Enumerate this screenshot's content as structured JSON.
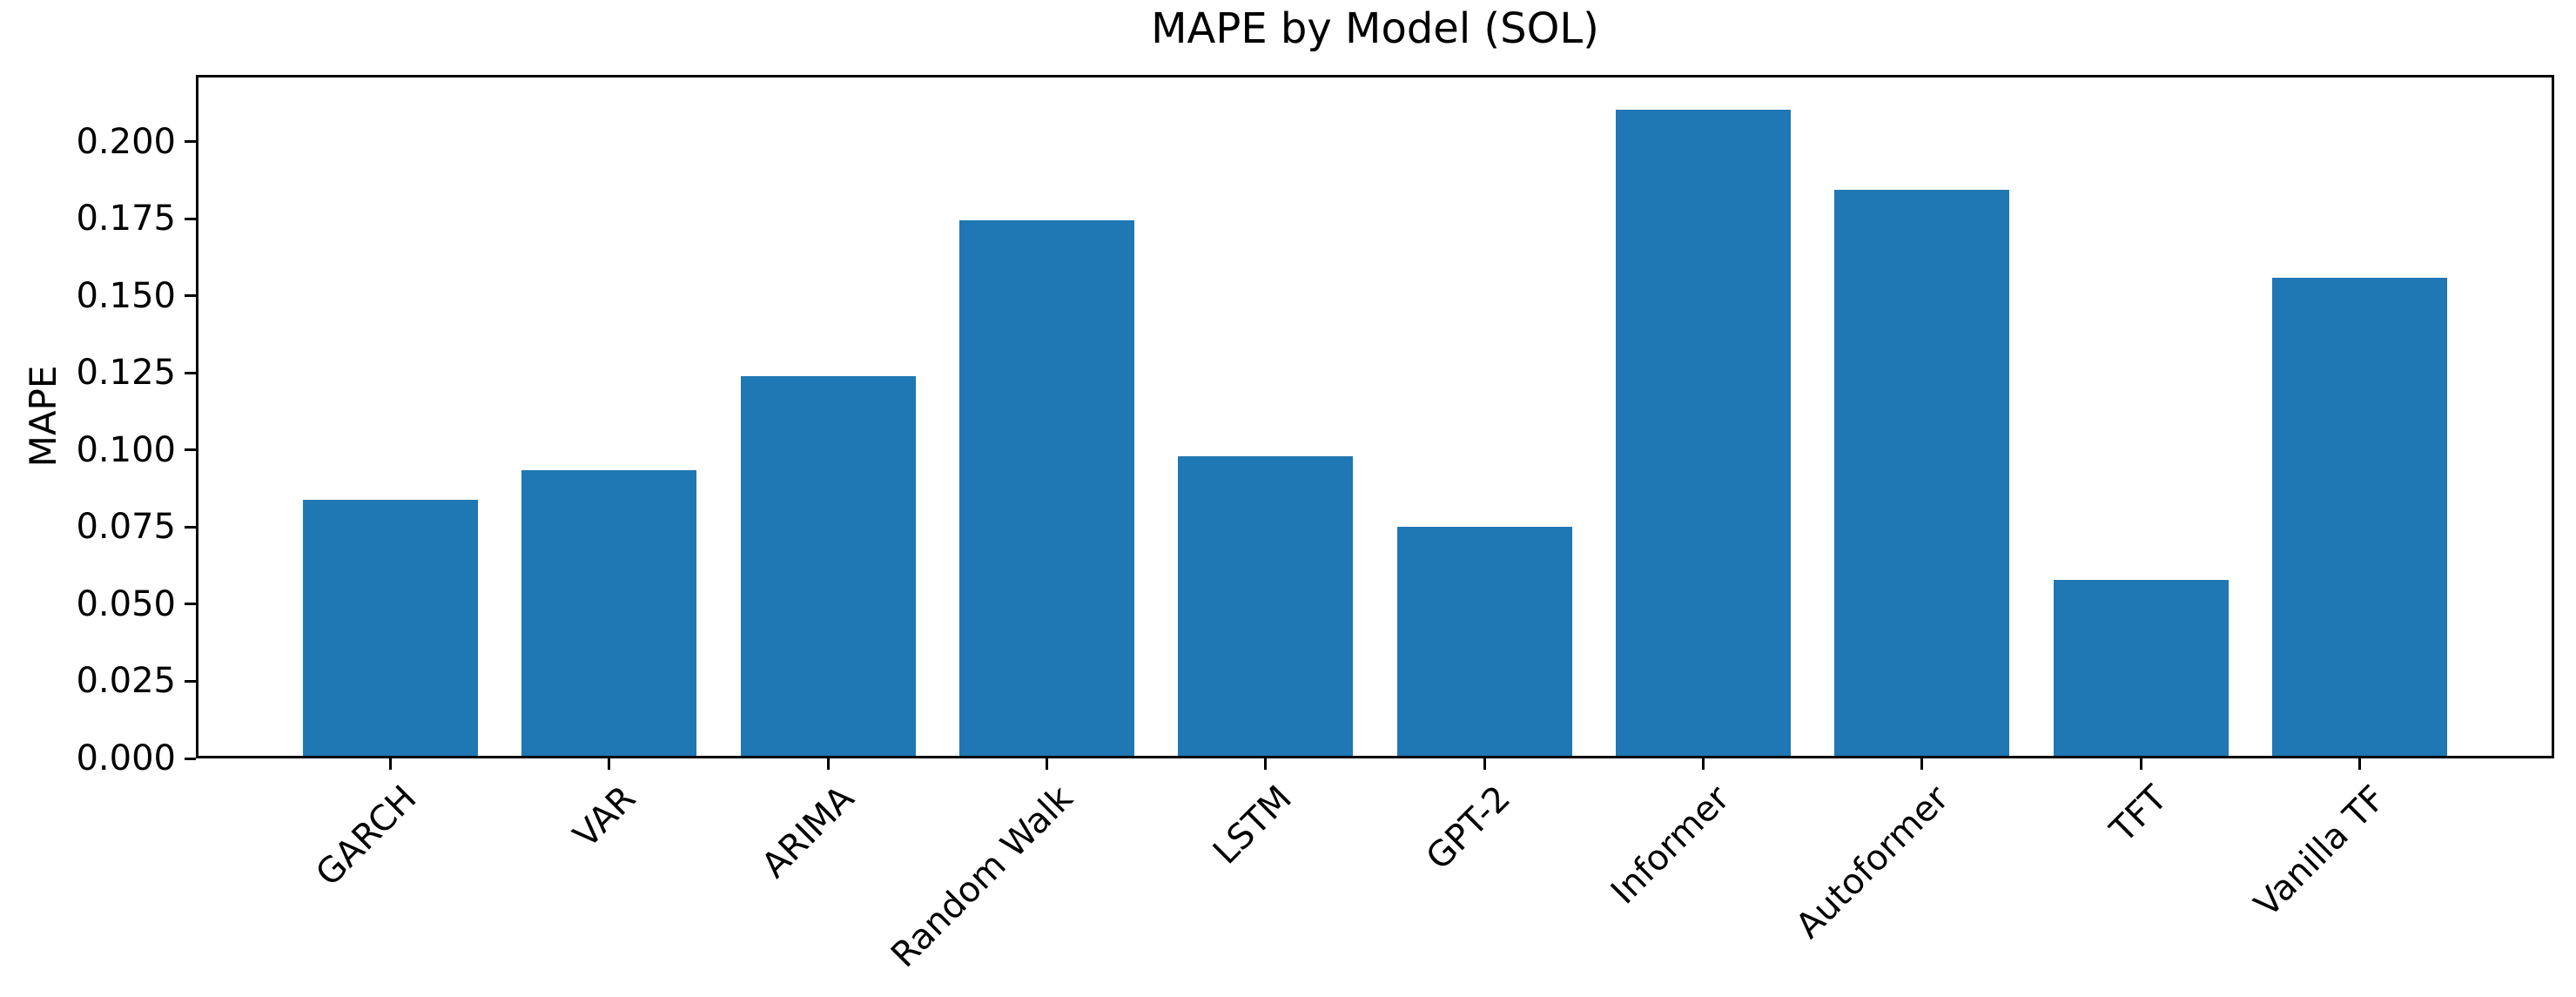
{
  "figure": {
    "background": "#ffffff",
    "text_color": "#000000",
    "axis_color": "#000000"
  },
  "chart_data": {
    "type": "bar",
    "title": "MAPE by Model (SOL)",
    "xlabel": "",
    "ylabel": "MAPE",
    "categories": [
      "GARCH",
      "VAR",
      "ARIMA",
      "Random Walk",
      "LSTM",
      "GPT-2",
      "Informer",
      "Autoformer",
      "TFT",
      "Vanilla TF"
    ],
    "values": [
      0.084,
      0.0935,
      0.124,
      0.1745,
      0.098,
      0.075,
      0.2105,
      0.1845,
      0.058,
      0.156
    ],
    "bar_color": "#1f77b4",
    "ylim": [
      0,
      0.2217
    ],
    "yticks": [
      0,
      0.025,
      0.05,
      0.075,
      0.1,
      0.125,
      0.15,
      0.175,
      0.2
    ],
    "ytick_labels": [
      "0.000",
      "0.025",
      "0.050",
      "0.075",
      "0.100",
      "0.125",
      "0.150",
      "0.175",
      "0.200"
    ],
    "x_tick_rotation_deg": 45,
    "bar_width_fraction": 0.8,
    "grid": false,
    "legend": "none"
  }
}
